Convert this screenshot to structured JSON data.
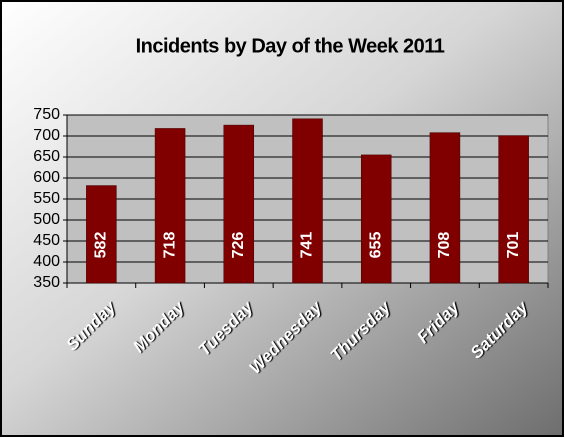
{
  "chart_data": {
    "type": "bar",
    "title": "Incidents by Day of the Week 2011",
    "categories": [
      "Sunday",
      "Monday",
      "Tuesday",
      "Wednesday",
      "Thursday",
      "Friday",
      "Saturday"
    ],
    "values": [
      582,
      718,
      726,
      741,
      655,
      708,
      701
    ],
    "color": "#800000",
    "ylim": [
      350,
      750
    ],
    "yticks": [
      350,
      400,
      450,
      500,
      550,
      600,
      650,
      700,
      750
    ],
    "grid": true
  }
}
